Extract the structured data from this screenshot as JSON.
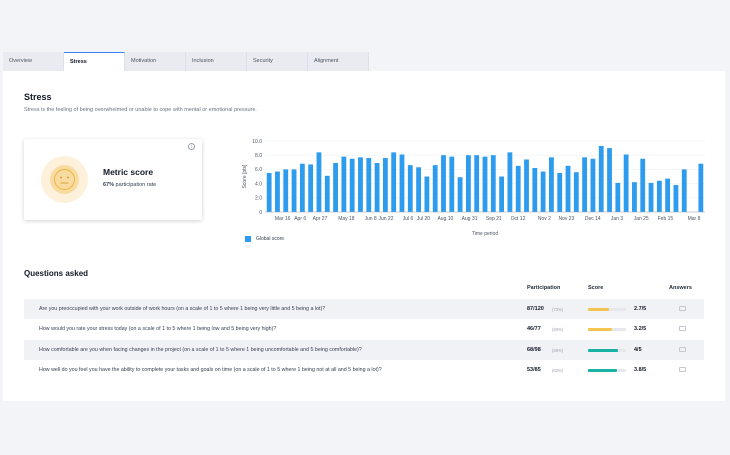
{
  "tabs": [
    {
      "label": "Overview",
      "active": false
    },
    {
      "label": "Stress",
      "active": true
    },
    {
      "label": "Motivation",
      "active": false
    },
    {
      "label": "Inclusion",
      "active": false
    },
    {
      "label": "Security",
      "active": false
    },
    {
      "label": "Alignment",
      "active": false
    }
  ],
  "section": {
    "title": "Stress",
    "description": "Stress is the feeling of being overwhelmed or unable to cope with mental or emotional pressure."
  },
  "metric": {
    "label": "Metric score",
    "participation_pct": "67%",
    "participation_text": "participation rate",
    "face_icon": "neutral-face-icon",
    "info_icon": "info-icon"
  },
  "chart_data": {
    "type": "bar",
    "ylabel": "Score [pts]",
    "xlabel": "Time period",
    "ylim": [
      0,
      10
    ],
    "yticks": [
      "0",
      "2.0",
      "4.0",
      "6.0",
      "8.0",
      "10.0"
    ],
    "xtick_labels": [
      "Mar 16",
      "Apr 6",
      "Apr 27",
      "May 18",
      "Jun 8",
      "Jun 22",
      "Jul 6",
      "Jul 20",
      "Aug 10",
      "Aug 31",
      "Sep 21",
      "Oct 12",
      "Nov 2",
      "Nov 23",
      "Dec 14",
      "Jan 3",
      "Jan 25",
      "Feb 15",
      "Mar 8"
    ],
    "series": [
      {
        "name": "Global score",
        "color": "#2d9cef",
        "values": [
          5.5,
          5.7,
          6.0,
          6.0,
          6.8,
          6.7,
          8.4,
          5.1,
          6.9,
          7.8,
          7.5,
          7.7,
          7.6,
          6.9,
          7.6,
          8.4,
          8.1,
          6.6,
          6.3,
          5.0,
          6.6,
          8.0,
          7.8,
          4.9,
          8.0,
          8.0,
          7.8,
          8.0,
          5.0,
          8.4,
          6.5,
          7.4,
          6.2,
          5.7,
          7.7,
          5.5,
          6.5,
          5.6,
          7.7,
          7.5,
          9.3,
          9.0,
          4.1,
          8.1,
          4.2,
          7.5,
          4.1,
          4.4,
          4.7,
          3.8,
          6.0,
          0,
          6.8
        ]
      }
    ],
    "legend": "bottom-left"
  },
  "questions": {
    "title": "Questions asked",
    "headers": {
      "participation": "Participation",
      "score": "Score",
      "answers": "Answers"
    },
    "rows": [
      {
        "text": "Are you preoccupied with your work outside of work hours (on a scale of 1 to 5 where 1 being very little and 5 being a lot)?",
        "participation": "87/120",
        "pct": "(73%)",
        "score": "2.7/5",
        "score_fraction": 0.54,
        "bar_color": "#f5c451"
      },
      {
        "text": "How would you rate your stress today (on a scale of 1 to 5 where 1 being low and 5 being very high)?",
        "participation": "46/77",
        "pct": "(60%)",
        "score": "3.2/5",
        "score_fraction": 0.64,
        "bar_color": "#f5c451"
      },
      {
        "text": "How comfortable are you when facing changes in the project (on a scale of 1 to 5 where 1 being uncomfortable and 5 being comfortable)?",
        "participation": "68/98",
        "pct": "(69%)",
        "score": "4/5",
        "score_fraction": 0.8,
        "bar_color": "#19b3a6"
      },
      {
        "text": "How well do you feel you have the ability to complete your tasks and goals on time (on a scale of 1 to 5 where 1 being not at all and 5 being a lot)?",
        "participation": "53/85",
        "pct": "(62%)",
        "score": "3.8/5",
        "score_fraction": 0.76,
        "bar_color": "#19b3a6"
      }
    ]
  }
}
